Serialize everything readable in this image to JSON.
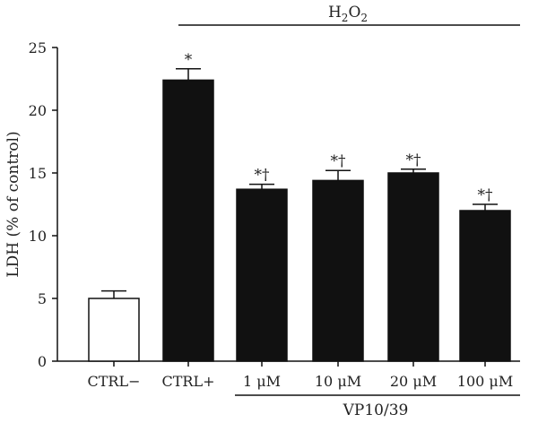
{
  "chart_data": {
    "type": "bar",
    "title": "",
    "ylabel": "LDH (% of control)",
    "xlabel": "",
    "ylim": [
      0,
      25
    ],
    "yticks": [
      0,
      5,
      10,
      15,
      20,
      25
    ],
    "categories": [
      "CTRL−",
      "CTRL+",
      "1 μM",
      "10 μM",
      "20 μM",
      "100 μM"
    ],
    "values": [
      5.0,
      22.4,
      13.7,
      14.4,
      15.0,
      12.0
    ],
    "errors": [
      0.6,
      0.9,
      0.4,
      0.8,
      0.3,
      0.5
    ],
    "fills": [
      "#ffffff",
      "#111111",
      "#111111",
      "#111111",
      "#111111",
      "#111111"
    ],
    "annotations": [
      "",
      "*",
      "*†",
      "*†",
      "*†",
      "*†"
    ],
    "groups": [
      {
        "label": "H2O2",
        "position": "top",
        "from": 1,
        "to": 5
      },
      {
        "label": "VP10/39",
        "position": "bottom",
        "from": 2,
        "to": 5
      }
    ]
  },
  "text": {
    "h2o2_main": "H",
    "h2o2_sub1": "2",
    "h2o2_mid": "O",
    "h2o2_sub2": "2",
    "vp_label": "VP10/39"
  }
}
